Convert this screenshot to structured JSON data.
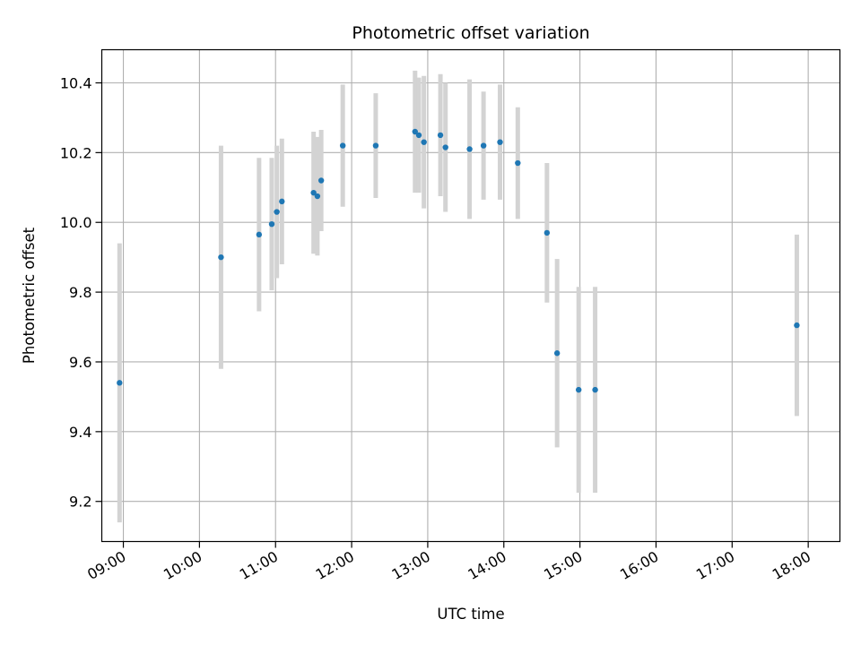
{
  "chart_data": {
    "type": "scatter",
    "title": "Photometric offset variation",
    "xlabel": "UTC time",
    "ylabel": "Photometric offset",
    "xlim": [
      "08:43",
      "18:25"
    ],
    "ylim": [
      9.085,
      10.495
    ],
    "x_ticks": [
      "09:00",
      "10:00",
      "11:00",
      "12:00",
      "13:00",
      "14:00",
      "15:00",
      "16:00",
      "17:00",
      "18:00"
    ],
    "y_ticks": [
      "9.2",
      "9.4",
      "9.6",
      "9.8",
      "10.0",
      "10.2",
      "10.4"
    ],
    "grid": true,
    "legend": "none",
    "points": [
      {
        "x": "08:57",
        "y": 9.54,
        "err": 0.4
      },
      {
        "x": "10:17",
        "y": 9.9,
        "err": 0.32
      },
      {
        "x": "10:47",
        "y": 9.965,
        "err": 0.22
      },
      {
        "x": "10:57",
        "y": 9.995,
        "err": 0.19
      },
      {
        "x": "11:01",
        "y": 10.03,
        "err": 0.19
      },
      {
        "x": "11:05",
        "y": 10.06,
        "err": 0.18
      },
      {
        "x": "11:30",
        "y": 10.085,
        "err": 0.175
      },
      {
        "x": "11:33",
        "y": 10.075,
        "err": 0.17
      },
      {
        "x": "11:36",
        "y": 10.12,
        "err": 0.145
      },
      {
        "x": "11:53",
        "y": 10.22,
        "err": 0.175
      },
      {
        "x": "12:19",
        "y": 10.22,
        "err": 0.15
      },
      {
        "x": "12:50",
        "y": 10.26,
        "err": 0.175
      },
      {
        "x": "12:53",
        "y": 10.25,
        "err": 0.165
      },
      {
        "x": "12:57",
        "y": 10.23,
        "err": 0.19
      },
      {
        "x": "13:10",
        "y": 10.25,
        "err": 0.175
      },
      {
        "x": "13:14",
        "y": 10.215,
        "err": 0.185
      },
      {
        "x": "13:33",
        "y": 10.21,
        "err": 0.2
      },
      {
        "x": "13:44",
        "y": 10.22,
        "err": 0.155
      },
      {
        "x": "13:57",
        "y": 10.23,
        "err": 0.165
      },
      {
        "x": "14:11",
        "y": 10.17,
        "err": 0.16
      },
      {
        "x": "14:34",
        "y": 9.97,
        "err": 0.2
      },
      {
        "x": "14:42",
        "y": 9.625,
        "err": 0.27
      },
      {
        "x": "14:59",
        "y": 9.52,
        "err": 0.295
      },
      {
        "x": "15:12",
        "y": 9.52,
        "err": 0.295
      },
      {
        "x": "17:51",
        "y": 9.705,
        "err": 0.26
      }
    ],
    "colors": {
      "marker": "#1f77b4",
      "errorbar": "#d3d3d3",
      "grid": "#b0b0b0"
    }
  }
}
